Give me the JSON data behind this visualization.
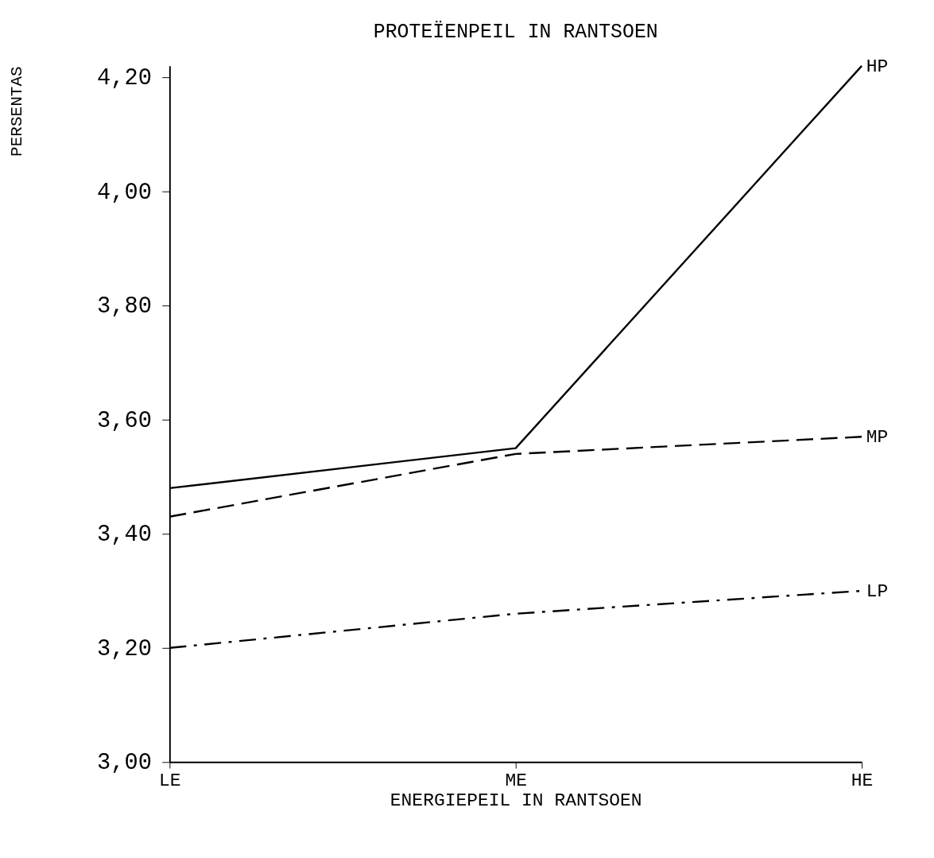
{
  "chart_data": {
    "type": "line",
    "title": "PROTEÏENPEIL IN RANTSOEN",
    "xlabel": "ENERGIEPEIL IN RANTSOEN",
    "ylabel": "PERSENTAS",
    "categories": [
      "LE",
      "ME",
      "HE"
    ],
    "series": [
      {
        "name": "HP",
        "color": "#000000",
        "line_style": "solid",
        "values": [
          3.48,
          3.55,
          4.22
        ]
      },
      {
        "name": "MP",
        "color": "#000000",
        "line_style": "dashed",
        "values": [
          3.43,
          3.54,
          3.57
        ]
      },
      {
        "name": "LP",
        "color": "#000000",
        "line_style": "dashdot",
        "values": [
          3.2,
          3.26,
          3.3
        ]
      }
    ],
    "ylim": [
      3.0,
      4.22
    ],
    "yticks": [
      {
        "value": 3.0,
        "label": "3,00"
      },
      {
        "value": 3.2,
        "label": "3,20"
      },
      {
        "value": 3.4,
        "label": "3,40"
      },
      {
        "value": 3.6,
        "label": "3,60"
      },
      {
        "value": 3.8,
        "label": "3,80"
      },
      {
        "value": 4.0,
        "label": "4,00"
      },
      {
        "value": 4.2,
        "label": "4,20"
      }
    ],
    "grid": false,
    "legend": false,
    "marker": "none"
  }
}
